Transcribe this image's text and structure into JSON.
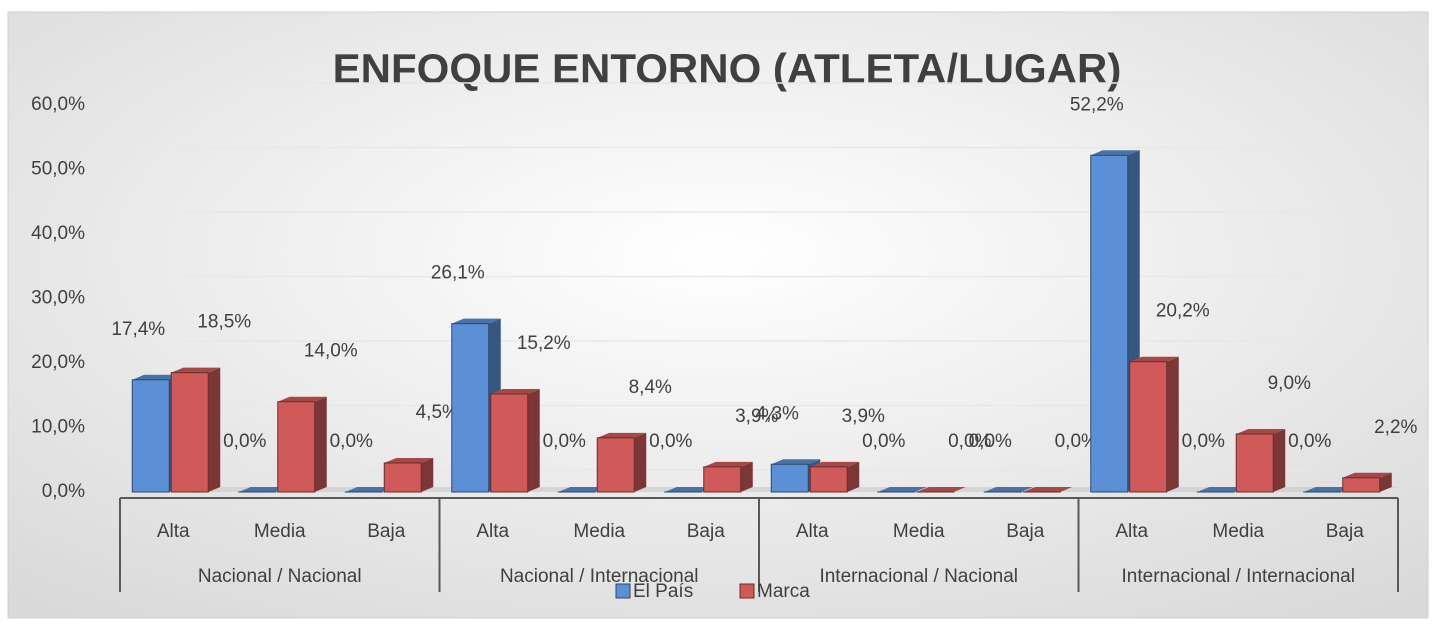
{
  "chart_data": {
    "type": "bar3d",
    "title": "ENFOQUE ENTORNO (ATLETA/LUGAR)",
    "categories": [
      "Alta",
      "Media",
      "Baja",
      "Alta",
      "Media",
      "Baja",
      "Alta",
      "Media",
      "Baja",
      "Alta",
      "Media",
      "Baja"
    ],
    "groups": [
      "Nacional / Nacional",
      "Nacional / Internacional",
      "Internacional / Nacional",
      "Internacional / Internacional"
    ],
    "series": [
      {
        "name": "El País",
        "color": "#5b8fd6",
        "values": [
          17.4,
          0,
          0,
          26.1,
          0,
          0,
          4.3,
          0,
          0,
          52.2,
          0,
          0
        ],
        "value_labels": [
          "17,4%",
          "0,0%",
          "0,0%",
          "26,1%",
          "0,0%",
          "0,0%",
          "4,3%",
          "0,0%",
          "0,0%",
          "52,2%",
          "0,0%",
          "0,0%"
        ]
      },
      {
        "name": "Marca",
        "color": "#d05a5a",
        "values": [
          18.5,
          14.0,
          4.5,
          15.2,
          8.4,
          3.9,
          3.9,
          0,
          0,
          20.2,
          9.0,
          2.2
        ],
        "value_labels": [
          "18,5%",
          "14,0%",
          "4,5%",
          "15,2%",
          "8,4%",
          "3,9%",
          "3,9%",
          "0,0%",
          "0,0%",
          "20,2%",
          "9,0%",
          "2,2%"
        ]
      }
    ],
    "ylim": [
      0,
      60
    ],
    "yticks": [
      {
        "value": 0,
        "label": "0,0%"
      },
      {
        "value": 10,
        "label": "10,0%"
      },
      {
        "value": 20,
        "label": "20,0%"
      },
      {
        "value": 30,
        "label": "30,0%"
      },
      {
        "value": 40,
        "label": "40,0%"
      },
      {
        "value": 50,
        "label": "50,0%"
      },
      {
        "value": 60,
        "label": "60,0%"
      }
    ],
    "grid": true,
    "legend": "bottom"
  }
}
